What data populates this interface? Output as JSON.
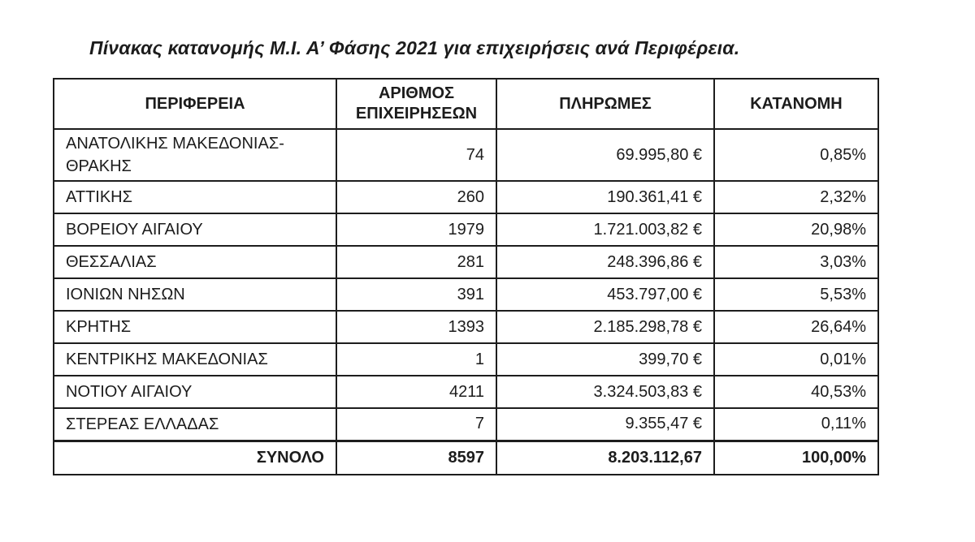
{
  "title": "Πίνακας κατανομής Μ.Ι. Α’ Φάσης 2021  για επιχειρήσεις ανά Περιφέρεια.",
  "table": {
    "headers": [
      "ΠΕΡΙΦΕΡΕΙΑ",
      "ΑΡΙΘΜΟΣ ΕΠΙΧΕΙΡΗΣΕΩΝ",
      "ΠΛΗΡΩΜΕΣ",
      "ΚΑΤΑΝΟΜΗ"
    ],
    "rows": [
      {
        "region": "ΑΝΑΤΟΛΙΚΗΣ ΜΑΚΕΔΟΝΙΑΣ-ΘΡΑΚΗΣ",
        "businesses": "74",
        "payments": "69.995,80 €",
        "allocation": "0,85%"
      },
      {
        "region": "ΑΤΤΙΚΗΣ",
        "businesses": "260",
        "payments": "190.361,41 €",
        "allocation": "2,32%"
      },
      {
        "region": "ΒΟΡΕΙΟΥ ΑΙΓΑΙΟΥ",
        "businesses": "1979",
        "payments": "1.721.003,82 €",
        "allocation": "20,98%"
      },
      {
        "region": "ΘΕΣΣΑΛΙΑΣ",
        "businesses": "281",
        "payments": "248.396,86 €",
        "allocation": "3,03%"
      },
      {
        "region": "ΙΟΝΙΩΝ ΝΗΣΩΝ",
        "businesses": "391",
        "payments": "453.797,00 €",
        "allocation": "5,53%"
      },
      {
        "region": "ΚΡΗΤΗΣ",
        "businesses": "1393",
        "payments": "2.185.298,78 €",
        "allocation": "26,64%"
      },
      {
        "region": "ΚΕΝΤΡΙΚΗΣ ΜΑΚΕΔΟΝΙΑΣ",
        "businesses": "1",
        "payments": "399,70 €",
        "allocation": "0,01%"
      },
      {
        "region": "ΝΟΤΙΟΥ ΑΙΓΑΙΟΥ",
        "businesses": "4211",
        "payments": "3.324.503,83 €",
        "allocation": "40,53%"
      },
      {
        "region": "ΣΤΕΡΕΑΣ ΕΛΛΑΔΑΣ",
        "businesses": "7",
        "payments": "9.355,47 €",
        "allocation": "0,11%"
      }
    ],
    "total": {
      "label": "ΣΥΝΟΛΟ",
      "businesses": "8597",
      "payments": "8.203.112,67",
      "allocation": "100,00%"
    }
  }
}
